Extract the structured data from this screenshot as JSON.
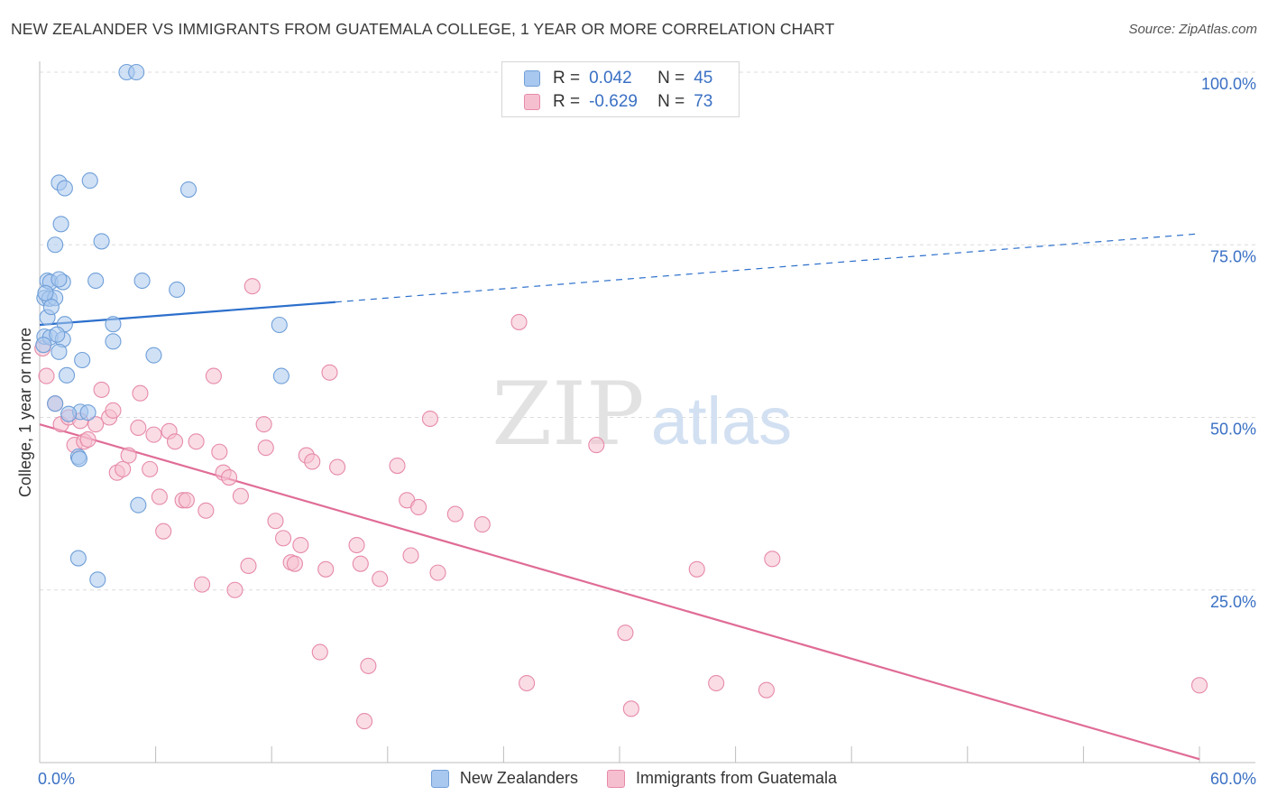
{
  "title": "NEW ZEALANDER VS IMMIGRANTS FROM GUATEMALA COLLEGE, 1 YEAR OR MORE CORRELATION CHART",
  "source": "Source: ZipAtlas.com",
  "watermark": {
    "zip": "ZIP",
    "atlas": "atlas"
  },
  "colors": {
    "blue_fill": "#a9c8ef",
    "blue_stroke": "#6f9fd8",
    "blue_line": "#2c6fcc",
    "pink_fill": "#f6bfd0",
    "pink_stroke": "#e68aa8",
    "pink_line": "#e06c96",
    "tick_label": "#3a70c4",
    "grid": "#dcdcdc"
  },
  "legend": {
    "rows": [
      {
        "r_label": "R =",
        "r_value": "0.042",
        "n_label": "N =",
        "n_value": "45",
        "series": "blue"
      },
      {
        "r_label": "R =",
        "r_value": "-0.629",
        "n_label": "N =",
        "n_value": "73",
        "series": "pink"
      }
    ]
  },
  "bottom_legend": {
    "items": [
      {
        "label": "New Zealanders",
        "series": "blue"
      },
      {
        "label": "Immigrants from Guatemala",
        "series": "pink"
      }
    ]
  },
  "chart_data": {
    "type": "scatter",
    "title": "NEW ZEALANDER VS IMMIGRANTS FROM GUATEMALA COLLEGE, 1 YEAR OR MORE CORRELATION CHART",
    "xlabel": "",
    "ylabel": "College, 1 year or more",
    "xlim": [
      0,
      60
    ],
    "ylim": [
      0,
      100
    ],
    "x_tick_labels": [
      "0.0%",
      "60.0%"
    ],
    "y_ticks": [
      25,
      50,
      75,
      100
    ],
    "y_tick_labels": [
      "25.0%",
      "50.0%",
      "75.0%",
      "100.0%"
    ],
    "grid": true,
    "series": [
      {
        "name": "New Zealanders",
        "color": "blue",
        "R": 0.042,
        "N": 45,
        "points": [
          [
            4.5,
            100
          ],
          [
            5.0,
            100
          ],
          [
            1.0,
            84.0
          ],
          [
            1.3,
            83.2
          ],
          [
            2.6,
            84.3
          ],
          [
            7.7,
            83.0
          ],
          [
            1.1,
            78.0
          ],
          [
            0.8,
            75.0
          ],
          [
            3.2,
            75.5
          ],
          [
            0.4,
            69.8
          ],
          [
            0.55,
            69.6
          ],
          [
            1.2,
            69.6
          ],
          [
            2.9,
            69.8
          ],
          [
            5.3,
            69.8
          ],
          [
            7.1,
            68.5
          ],
          [
            0.25,
            67.3
          ],
          [
            0.5,
            67.2
          ],
          [
            0.8,
            67.3
          ],
          [
            0.4,
            64.5
          ],
          [
            1.3,
            63.5
          ],
          [
            3.8,
            63.5
          ],
          [
            12.4,
            63.4
          ],
          [
            0.25,
            61.7
          ],
          [
            0.55,
            61.6
          ],
          [
            1.2,
            61.3
          ],
          [
            3.8,
            61.0
          ],
          [
            1.0,
            59.5
          ],
          [
            5.9,
            59.0
          ],
          [
            2.2,
            58.3
          ],
          [
            1.4,
            56.1
          ],
          [
            12.5,
            56.0
          ],
          [
            0.8,
            52.0
          ],
          [
            2.1,
            50.8
          ],
          [
            2.5,
            50.7
          ],
          [
            1.5,
            50.5
          ],
          [
            2.0,
            44.3
          ],
          [
            2.05,
            44.0
          ],
          [
            5.1,
            37.3
          ],
          [
            2.0,
            29.6
          ],
          [
            3.0,
            26.5
          ],
          [
            0.3,
            68.0
          ],
          [
            0.6,
            66.0
          ],
          [
            1.0,
            70.0
          ],
          [
            0.9,
            62.0
          ],
          [
            0.2,
            60.5
          ]
        ],
        "trend_solid": {
          "x": [
            0,
            15.3
          ],
          "y": [
            63.4,
            66.7
          ]
        },
        "trend_dashed": {
          "x": [
            15.3,
            60
          ],
          "y": [
            66.7,
            76.6
          ]
        }
      },
      {
        "name": "Immigrants from Guatemala",
        "color": "pink",
        "R": -0.629,
        "N": 73,
        "points": [
          [
            0.15,
            60.0
          ],
          [
            0.35,
            56.0
          ],
          [
            0.8,
            52.0
          ],
          [
            1.1,
            49.0
          ],
          [
            1.5,
            50.0
          ],
          [
            1.8,
            46.0
          ],
          [
            2.1,
            49.5
          ],
          [
            2.3,
            46.5
          ],
          [
            2.5,
            46.8
          ],
          [
            2.9,
            49.0
          ],
          [
            3.2,
            54.0
          ],
          [
            3.6,
            50.0
          ],
          [
            3.8,
            51.0
          ],
          [
            4.0,
            42.0
          ],
          [
            4.3,
            42.5
          ],
          [
            4.6,
            44.5
          ],
          [
            5.2,
            53.5
          ],
          [
            5.1,
            48.5
          ],
          [
            5.7,
            42.5
          ],
          [
            5.9,
            47.5
          ],
          [
            6.2,
            38.5
          ],
          [
            6.4,
            33.5
          ],
          [
            6.7,
            48.0
          ],
          [
            7.0,
            46.5
          ],
          [
            7.4,
            38.0
          ],
          [
            7.6,
            38.0
          ],
          [
            8.1,
            46.5
          ],
          [
            8.4,
            25.8
          ],
          [
            8.6,
            36.5
          ],
          [
            9.0,
            56.0
          ],
          [
            9.3,
            45.0
          ],
          [
            9.5,
            42.0
          ],
          [
            9.8,
            41.3
          ],
          [
            10.1,
            25.0
          ],
          [
            10.4,
            38.6
          ],
          [
            10.8,
            28.5
          ],
          [
            11.0,
            69.0
          ],
          [
            11.6,
            49.0
          ],
          [
            11.7,
            45.6
          ],
          [
            12.2,
            35.0
          ],
          [
            12.6,
            32.5
          ],
          [
            13.0,
            29.0
          ],
          [
            13.2,
            28.8
          ],
          [
            13.5,
            31.5
          ],
          [
            13.8,
            44.5
          ],
          [
            14.1,
            43.6
          ],
          [
            14.5,
            16.0
          ],
          [
            14.8,
            28.0
          ],
          [
            15.0,
            56.5
          ],
          [
            15.4,
            42.8
          ],
          [
            16.4,
            31.5
          ],
          [
            16.6,
            28.8
          ],
          [
            16.8,
            6.0
          ],
          [
            17.0,
            14.0
          ],
          [
            17.6,
            26.6
          ],
          [
            18.5,
            43.0
          ],
          [
            19.0,
            38.0
          ],
          [
            19.2,
            30.0
          ],
          [
            19.6,
            37.0
          ],
          [
            20.2,
            49.8
          ],
          [
            20.6,
            27.5
          ],
          [
            21.5,
            36.0
          ],
          [
            22.9,
            34.5
          ],
          [
            24.8,
            63.8
          ],
          [
            25.2,
            11.5
          ],
          [
            28.8,
            46.0
          ],
          [
            30.3,
            18.8
          ],
          [
            30.6,
            7.8
          ],
          [
            34.0,
            28.0
          ],
          [
            35.0,
            11.5
          ],
          [
            37.9,
            29.5
          ],
          [
            37.6,
            10.5
          ],
          [
            60.0,
            11.2
          ]
        ],
        "trend_solid": {
          "x": [
            0,
            60
          ],
          "y": [
            49.0,
            0.5
          ]
        }
      }
    ]
  }
}
